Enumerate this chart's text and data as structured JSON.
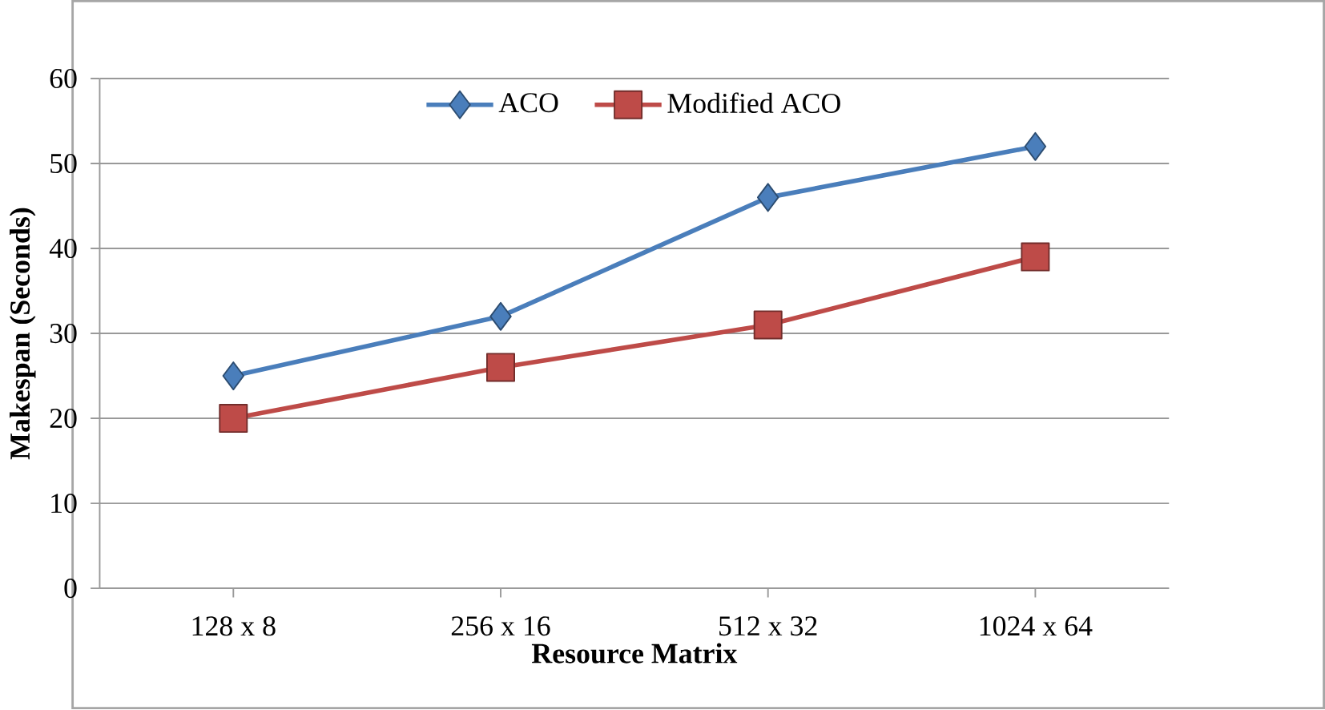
{
  "chart_data": {
    "type": "line",
    "xlabel": "Resource Matrix",
    "ylabel": "Makespan (Seconds)",
    "categories": [
      "128 x 8",
      "256 x 16",
      "512 x 32",
      "1024 x 64"
    ],
    "series": [
      {
        "name": "ACO",
        "color": "#4a7ebb",
        "marker": "diamond",
        "values": [
          25,
          32,
          46,
          52
        ]
      },
      {
        "name": "Modified ACO",
        "color": "#be4b48",
        "marker": "square",
        "values": [
          20,
          26,
          31,
          39
        ]
      }
    ],
    "ylim": [
      0,
      60
    ],
    "yticks": [
      0,
      10,
      20,
      30,
      40,
      50,
      60
    ],
    "grid": "y",
    "legend": "top",
    "line_style": "solid"
  }
}
